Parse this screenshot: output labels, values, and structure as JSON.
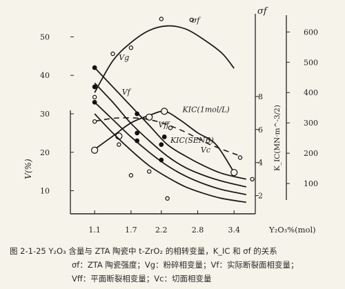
{
  "chart_data": {
    "type": "line",
    "x_axis": {
      "label": "Y₂O₃%(mol)",
      "ticks": [
        "1.1",
        "1.7",
        "2.2",
        "2.8",
        "3.4"
      ],
      "range": [
        0.7,
        3.75
      ]
    },
    "left_axis": {
      "label": "V(%)",
      "ticks": [
        "10",
        "20",
        "30",
        "40",
        "50"
      ],
      "range": [
        4,
        56
      ]
    },
    "mid_axis": {
      "label": "K_IC(MN·m^-3/2)",
      "ticks": [
        "2",
        "4",
        "6",
        "8"
      ],
      "range": [
        0.9,
        13
      ]
    },
    "right_axis": {
      "label": "σf",
      "ticks": [
        "100",
        "200",
        "300",
        "400",
        "500",
        "600"
      ],
      "range": [
        0,
        660
      ]
    },
    "series": [
      {
        "name": "σf",
        "axis": "right",
        "style": "solid",
        "label_pos": [
          2.7,
          630
        ],
        "curve": [
          [
            1.1,
            400
          ],
          [
            1.4,
            505
          ],
          [
            1.7,
            565
          ],
          [
            2.0,
            605
          ],
          [
            2.3,
            620
          ],
          [
            2.6,
            610
          ],
          [
            2.9,
            575
          ],
          [
            3.2,
            530
          ],
          [
            3.4,
            480
          ]
        ],
        "points": [
          [
            1.1,
            385
          ],
          [
            1.4,
            528
          ],
          [
            1.7,
            548
          ],
          [
            2.2,
            643
          ],
          [
            2.7,
            640
          ]
        ],
        "marker": "open"
      },
      {
        "name": "KIC(1mol/L)",
        "axis": "mid",
        "style": "solid",
        "label_pos": [
          2.55,
          7.05
        ],
        "curve": [
          [
            1.1,
            4.8
          ],
          [
            1.4,
            5.6
          ],
          [
            1.7,
            6.4
          ],
          [
            2.0,
            6.85
          ],
          [
            2.25,
            7.1
          ],
          [
            2.5,
            6.6
          ],
          [
            2.8,
            5.8
          ],
          [
            3.1,
            5.1
          ],
          [
            3.4,
            3.4
          ]
        ],
        "points": [
          [
            1.1,
            4.75
          ],
          [
            1.5,
            5.6
          ],
          [
            2.0,
            6.75
          ],
          [
            2.25,
            7.1
          ],
          [
            3.4,
            3.4
          ]
        ],
        "marker": "open-large"
      },
      {
        "name": "KIC(SENB)",
        "axis": "mid",
        "style": "dashed",
        "label_pos": [
          2.35,
          5.2
        ],
        "curve": [
          [
            1.1,
            6.5
          ],
          [
            1.5,
            6.7
          ],
          [
            2.0,
            6.6
          ],
          [
            2.5,
            6.0
          ],
          [
            3.0,
            5.1
          ],
          [
            3.5,
            4.4
          ]
        ],
        "points": [
          [
            2.35,
            6.1
          ],
          [
            3.5,
            4.3
          ]
        ],
        "marker": "open"
      },
      {
        "name": "Vg",
        "axis": "left",
        "style": "solid",
        "label_pos": [
          1.5,
          44
        ],
        "curve": [
          [
            1.1,
            42
          ],
          [
            1.4,
            37
          ],
          [
            1.7,
            32
          ],
          [
            2.0,
            27
          ],
          [
            2.3,
            22
          ],
          [
            2.6,
            19
          ],
          [
            2.9,
            16.5
          ],
          [
            3.2,
            14.5
          ],
          [
            3.6,
            13
          ]
        ],
        "points": [
          [
            1.1,
            42
          ],
          [
            1.8,
            30
          ],
          [
            2.25,
            24
          ]
        ],
        "marker": "filled"
      },
      {
        "name": "Vf",
        "axis": "left",
        "style": "solid",
        "label_pos": [
          1.55,
          35
        ],
        "curve": [
          [
            1.1,
            38
          ],
          [
            1.4,
            33
          ],
          [
            1.7,
            27.5
          ],
          [
            2.0,
            23
          ],
          [
            2.3,
            19
          ],
          [
            2.6,
            16
          ],
          [
            2.9,
            14
          ],
          [
            3.2,
            12.5
          ],
          [
            3.6,
            11
          ]
        ],
        "points": [
          [
            1.1,
            37
          ],
          [
            1.8,
            25
          ],
          [
            2.2,
            22
          ]
        ],
        "marker": "filled"
      },
      {
        "name": "Vff",
        "axis": "left",
        "style": "solid",
        "label_pos": [
          2.15,
          26.5
        ],
        "curve": [
          [
            1.1,
            33
          ],
          [
            1.4,
            28.5
          ],
          [
            1.7,
            24
          ],
          [
            2.0,
            20
          ],
          [
            2.3,
            16.5
          ],
          [
            2.6,
            13.8
          ],
          [
            2.9,
            11.8
          ],
          [
            3.2,
            10.3
          ],
          [
            3.6,
            9
          ]
        ],
        "points": [
          [
            1.1,
            33
          ],
          [
            1.8,
            23
          ],
          [
            2.2,
            18
          ]
        ],
        "marker": "filled"
      },
      {
        "name": "Vc",
        "axis": "left",
        "style": "solid",
        "label_pos": [
          2.85,
          20
        ],
        "curve": [
          [
            1.1,
            30
          ],
          [
            1.4,
            25
          ],
          [
            1.7,
            20.5
          ],
          [
            2.0,
            16.5
          ],
          [
            2.3,
            13.5
          ],
          [
            2.6,
            11
          ],
          [
            2.9,
            9.3
          ],
          [
            3.2,
            8
          ],
          [
            3.6,
            7
          ]
        ],
        "points": [
          [
            1.1,
            28
          ],
          [
            1.5,
            22
          ],
          [
            1.7,
            14
          ],
          [
            2.0,
            15
          ],
          [
            2.3,
            8
          ],
          [
            3.7,
            13
          ]
        ],
        "marker": "open"
      }
    ]
  },
  "caption": {
    "line1": "图 2-1-25   Y₂O₃ 含量与 ZTA 陶瓷中 t-ZrO₂ 的相转变量，K_IC 和 σf 的关系",
    "line2": "σf：ZTA 陶瓷强度；Vg：粉碎相变量；Vf：实际断裂面相变量；",
    "line3": "Vff：平面断裂相变量；Vc：切面相变量"
  }
}
